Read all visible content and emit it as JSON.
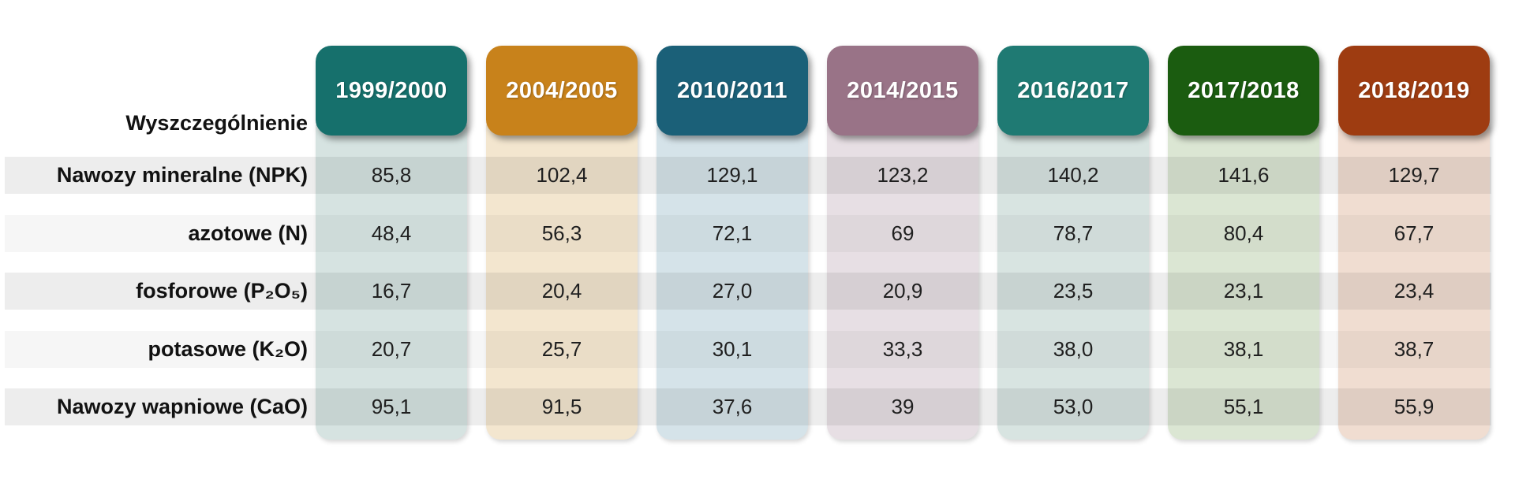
{
  "table": {
    "corner_label": "Wyszczególnienie",
    "columns": [
      {
        "label": "1999/2000",
        "color": "#16706c",
        "tint": "#d6e3e1"
      },
      {
        "label": "2004/2005",
        "color": "#c8821b",
        "tint": "#f3e6cf"
      },
      {
        "label": "2010/2011",
        "color": "#1b6078",
        "tint": "#d5e3e9"
      },
      {
        "label": "2014/2015",
        "color": "#997387",
        "tint": "#e7dfe4"
      },
      {
        "label": "2016/2017",
        "color": "#1f7a73",
        "tint": "#d8e4e1"
      },
      {
        "label": "2017/2018",
        "color": "#1b5c10",
        "tint": "#dbe6d3"
      },
      {
        "label": "2018/2019",
        "color": "#9e3c11",
        "tint": "#f0ddd1"
      }
    ],
    "rows": [
      {
        "label": "Nawozy mineralne (NPK)",
        "values": [
          "85,8",
          "102,4",
          "129,1",
          "123,2",
          "140,2",
          "141,6",
          "129,7"
        ]
      },
      {
        "label": "azotowe (N)",
        "values": [
          "48,4",
          "56,3",
          "72,1",
          "69",
          "78,7",
          "80,4",
          "67,7"
        ]
      },
      {
        "label": "fosforowe (P₂O₅)",
        "values": [
          "16,7",
          "20,4",
          "27,0",
          "20,9",
          "23,5",
          "23,1",
          "23,4"
        ]
      },
      {
        "label": "potasowe (K₂O)",
        "values": [
          "20,7",
          "25,7",
          "30,1",
          "33,3",
          "38,0",
          "38,1",
          "38,7"
        ]
      },
      {
        "label": "Nawozy wapniowe (CaO)",
        "values": [
          "95,1",
          "91,5",
          "37,6",
          "39",
          "53,0",
          "55,1",
          "55,9"
        ]
      }
    ]
  },
  "chart_data": {
    "type": "table",
    "title": "",
    "corner_label": "Wyszczególnienie",
    "categories": [
      "1999/2000",
      "2004/2005",
      "2010/2011",
      "2014/2015",
      "2016/2017",
      "2017/2018",
      "2018/2019"
    ],
    "series": [
      {
        "name": "Nawozy mineralne (NPK)",
        "values": [
          85.8,
          102.4,
          129.1,
          123.2,
          140.2,
          141.6,
          129.7
        ]
      },
      {
        "name": "azotowe (N)",
        "values": [
          48.4,
          56.3,
          72.1,
          69,
          78.7,
          80.4,
          67.7
        ]
      },
      {
        "name": "fosforowe (P₂O₅)",
        "values": [
          16.7,
          20.4,
          27.0,
          20.9,
          23.5,
          23.1,
          23.4
        ]
      },
      {
        "name": "potasowe (K₂O)",
        "values": [
          20.7,
          25.7,
          30.1,
          33.3,
          38.0,
          38.1,
          38.7
        ]
      },
      {
        "name": "Nawozy wapniowe (CaO)",
        "values": [
          95.1,
          91.5,
          37.6,
          39,
          53.0,
          55.1,
          55.9
        ]
      }
    ],
    "header_colors": [
      "#16706c",
      "#c8821b",
      "#1b6078",
      "#997387",
      "#1f7a73",
      "#1b5c10",
      "#9e3c11"
    ]
  }
}
